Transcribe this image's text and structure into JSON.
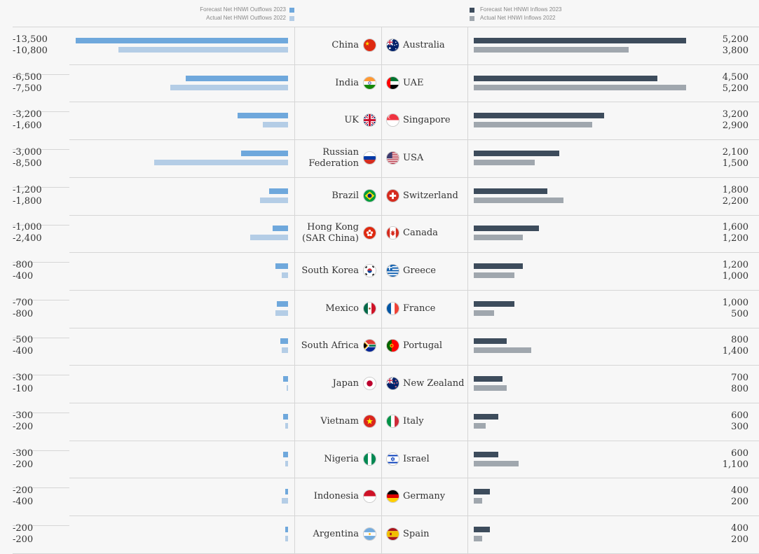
{
  "legend": {
    "outflow_forecast": "Forecast Net HNWI Outflows 2023",
    "outflow_actual": "Actual Net HNWI Outflows 2022",
    "inflow_forecast": "Forecast Net HNWI Inflows 2023",
    "inflow_actual": "Actual Net HNWI Inflows 2022"
  },
  "colors": {
    "outflow_forecast": "#6fa8dc",
    "outflow_actual": "#b4cde6",
    "inflow_forecast": "#3d4c5c",
    "inflow_actual": "#a0a7ae"
  },
  "chart_data": [
    {
      "type": "bar",
      "categories": [
        "China",
        "India",
        "UK",
        "Russian Federation",
        "Brazil",
        "Hong Kong (SAR China)",
        "South Korea",
        "Mexico",
        "South Africa",
        "Japan",
        "Vietnam",
        "Nigeria",
        "Indonesia",
        "Argentina"
      ],
      "category_lines": [
        [
          "China"
        ],
        [
          "India"
        ],
        [
          "UK"
        ],
        [
          "Russian",
          "Federation"
        ],
        [
          "Brazil"
        ],
        [
          "Hong Kong",
          "(SAR China)"
        ],
        [
          "South Korea"
        ],
        [
          "Mexico"
        ],
        [
          "South Africa"
        ],
        [
          "Japan"
        ],
        [
          "Vietnam"
        ],
        [
          "Nigeria"
        ],
        [
          "Indonesia"
        ],
        [
          "Argentina"
        ]
      ],
      "flags": [
        "china-flag-icon",
        "india-flag-icon",
        "uk-flag-icon",
        "russia-flag-icon",
        "brazil-flag-icon",
        "hong-kong-flag-icon",
        "south-korea-flag-icon",
        "mexico-flag-icon",
        "south-africa-flag-icon",
        "japan-flag-icon",
        "vietnam-flag-icon",
        "nigeria-flag-icon",
        "indonesia-flag-icon",
        "argentina-flag-icon"
      ],
      "series": [
        {
          "name": "Forecast Net HNWI Outflows 2023",
          "values": [
            -13500,
            -6500,
            -3200,
            -3000,
            -1200,
            -1000,
            -800,
            -700,
            -500,
            -300,
            -300,
            -300,
            -200,
            -200
          ]
        },
        {
          "name": "Actual Net HNWI Outflows 2022",
          "values": [
            -10800,
            -7500,
            -1600,
            -8500,
            -1800,
            -2400,
            -400,
            -800,
            -400,
            -100,
            -200,
            -200,
            -400,
            -200
          ]
        }
      ],
      "labels": [
        [
          "-13,500",
          "-6,500",
          "-3,200",
          "-3,000",
          "-1,200",
          "-1,000",
          "-800",
          "-700",
          "-500",
          "-300",
          "-300",
          "-300",
          "-200",
          "-200"
        ],
        [
          "-10,800",
          "-7,500",
          "-1,600",
          "-8,500",
          "-1,800",
          "-2,400",
          "-400",
          "-800",
          "-400",
          "-100",
          "-200",
          "-200",
          "-400",
          "-200"
        ]
      ]
    },
    {
      "type": "bar",
      "categories": [
        "Australia",
        "UAE",
        "Singapore",
        "USA",
        "Switzerland",
        "Canada",
        "Greece",
        "France",
        "Portugal",
        "New Zealand",
        "Italy",
        "Israel",
        "Germany",
        "Spain"
      ],
      "category_lines": [
        [
          "Australia"
        ],
        [
          "UAE"
        ],
        [
          "Singapore"
        ],
        [
          "USA"
        ],
        [
          "Switzerland"
        ],
        [
          "Canada"
        ],
        [
          "Greece"
        ],
        [
          "France"
        ],
        [
          "Portugal"
        ],
        [
          "New Zealand"
        ],
        [
          "Italy"
        ],
        [
          "Israel"
        ],
        [
          "Germany"
        ],
        [
          "Spain"
        ]
      ],
      "flags": [
        "australia-flag-icon",
        "uae-flag-icon",
        "singapore-flag-icon",
        "usa-flag-icon",
        "switzerland-flag-icon",
        "canada-flag-icon",
        "greece-flag-icon",
        "france-flag-icon",
        "portugal-flag-icon",
        "new-zealand-flag-icon",
        "italy-flag-icon",
        "israel-flag-icon",
        "germany-flag-icon",
        "spain-flag-icon"
      ],
      "series": [
        {
          "name": "Forecast Net HNWI Inflows 2023",
          "values": [
            5200,
            4500,
            3200,
            2100,
            1800,
            1600,
            1200,
            1000,
            800,
            700,
            600,
            600,
            400,
            400
          ]
        },
        {
          "name": "Actual Net HNWI Inflows 2022",
          "values": [
            3800,
            5200,
            2900,
            1500,
            2200,
            1200,
            1000,
            500,
            1400,
            800,
            300,
            1100,
            200,
            200
          ]
        }
      ],
      "labels": [
        [
          "5,200",
          "4,500",
          "3,200",
          "2,100",
          "1,800",
          "1,600",
          "1,200",
          "1,000",
          "800",
          "700",
          "600",
          "600",
          "400",
          "400"
        ],
        [
          "3,800",
          "5,200",
          "2,900",
          "1,500",
          "2,200",
          "1,200",
          "1,000",
          "500",
          "1,400",
          "800",
          "300",
          "1,100",
          "200",
          "200"
        ]
      ]
    }
  ]
}
